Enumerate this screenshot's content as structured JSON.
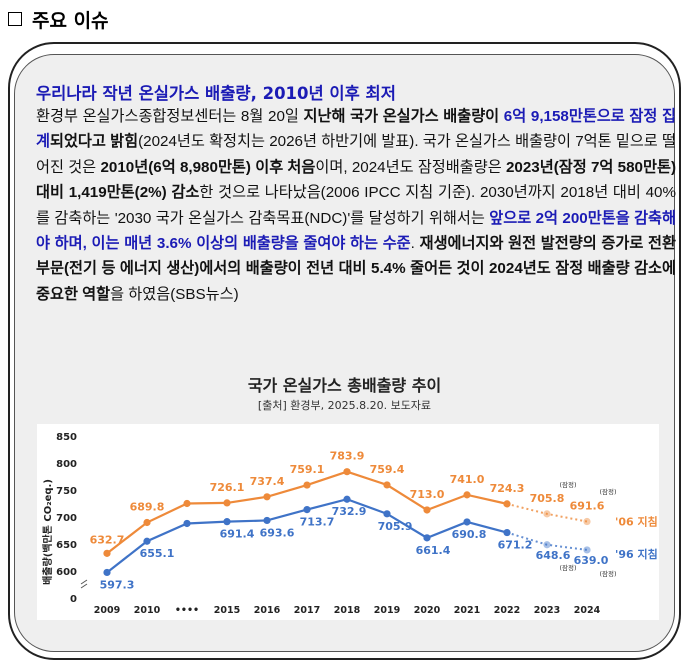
{
  "heading": "주요 이슈",
  "article": {
    "title": "우리나라 작년 온실가스 배출량, 2010년 이후 최저",
    "segments": [
      {
        "t": "환경부 온실가스종합정보센터는 8월 20일 ",
        "s": "n"
      },
      {
        "t": "지난해 국가 온실가스 배출량이 ",
        "s": "b"
      },
      {
        "t": "6억 9,158만톤으로 잠정 집계",
        "s": "blue"
      },
      {
        "t": "되었다고 밝힘",
        "s": "b"
      },
      {
        "t": "(2024년도 확정치는 2026년 하반기에 발표). 국가 온실가스 배출량이 7억톤 밑으로 떨어진 것은 ",
        "s": "n"
      },
      {
        "t": "2010년(6억 8,980만톤) 이후 처음",
        "s": "b"
      },
      {
        "t": "이며, 2024년도 잠정배출량은 ",
        "s": "n"
      },
      {
        "t": "2023년(잠정 7억 580만톤) 대비 1,419만톤(2%) 감소",
        "s": "b"
      },
      {
        "t": "한 것으로 나타났음(2006 IPCC 지침 기준). 2030년까지 2018년 대비 40%를 감축하는 '2030 국가 온실가스 감축목표(NDC)'를 달성하기 위해서는 ",
        "s": "n"
      },
      {
        "t": "앞으로 2억 200만톤을 감축해야 하며, 이는 매년 3.6% 이상의 배출량을 줄여야 하는 수준",
        "s": "blue"
      },
      {
        "t": ". ",
        "s": "n"
      },
      {
        "t": "재생에너지와 원전 발전량의 증가로 전환 부문(전기 등 에너지 생산)에서의 배출량이 전년 대비 5.4% 줄어든 것이 2024년도 잠정 배출량 감소에 중요한 역할",
        "s": "b"
      },
      {
        "t": "을 하였음(SBS뉴스)",
        "s": "n"
      }
    ]
  },
  "chart_title": "국가 온실가스 총배출량 추이",
  "chart_source": "[출처] 환경부, 2025.8.20. 보도자료",
  "chart_data": {
    "type": "line",
    "ylabel": "배출량(백만톤 CO₂eq.)",
    "ylim": [
      0,
      850
    ],
    "yticks": [
      "0",
      "600",
      "650",
      "700",
      "750",
      "800",
      "850"
    ],
    "categories": [
      "2009",
      "2010",
      "••••",
      "2015",
      "2016",
      "2017",
      "2018",
      "2019",
      "2020",
      "2021",
      "2022",
      "2023",
      "2024"
    ],
    "provisional_label": "(잠정)",
    "series": [
      {
        "name": "'06 지침",
        "color": "#ee8a3a",
        "values": [
          632.7,
          689.8,
          725.0,
          726.1,
          737.4,
          759.1,
          783.9,
          759.4,
          713.0,
          741.0,
          724.3,
          705.8,
          691.6
        ],
        "labels": [
          "632.7",
          "689.8",
          "",
          "726.1",
          "737.4",
          "759.1",
          "783.9",
          "759.4",
          "713.0",
          "741.0",
          "724.3",
          "705.8",
          "691.6"
        ]
      },
      {
        "name": "'96 지침",
        "color": "#3f73c7",
        "values": [
          597.3,
          655.1,
          688.0,
          691.4,
          693.6,
          713.7,
          732.9,
          705.9,
          661.4,
          690.8,
          671.2,
          648.6,
          639.0
        ],
        "labels": [
          "597.3",
          "655.1",
          "",
          "691.4",
          "693.6",
          "713.7",
          "732.9",
          "705.9",
          "661.4",
          "690.8",
          "671.2",
          "648.6",
          "639.0"
        ]
      }
    ]
  }
}
